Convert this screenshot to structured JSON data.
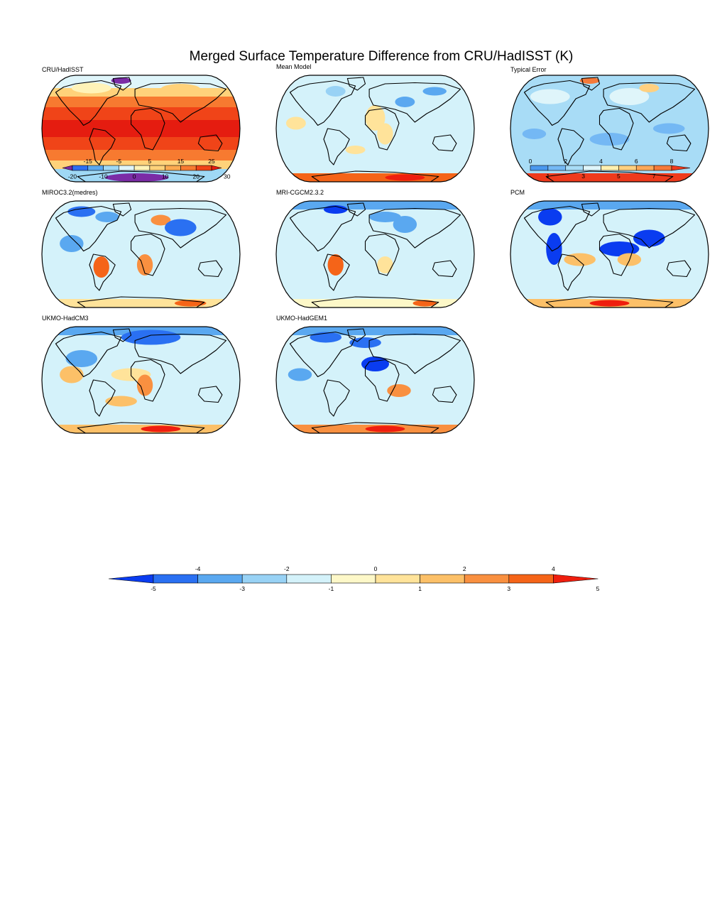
{
  "title": "Merged Surface Temperature Difference from CRU/HadISST (K)",
  "panels": [
    {
      "label": "CRU/HadISST",
      "kind": "absolute"
    },
    {
      "label": "Mean Model",
      "kind": "difference"
    },
    {
      "label": "Typical Error",
      "kind": "error"
    },
    {
      "label": "MIROC3.2(medres)",
      "kind": "difference"
    },
    {
      "label": "MRI-CGCM2.3.2",
      "kind": "difference"
    },
    {
      "label": "PCM",
      "kind": "difference"
    },
    {
      "label": "UKMO-HadCM3",
      "kind": "difference"
    },
    {
      "label": "UKMO-HadGEM1",
      "kind": "difference"
    }
  ],
  "legends": {
    "absolute": {
      "top_ticks": [
        "-15",
        "-5",
        "5",
        "15",
        "25"
      ],
      "bottom_ticks": [
        "-20",
        "-10",
        "0",
        "10",
        "20",
        "30"
      ],
      "colors": [
        "#7b2ca6",
        "#2d6ff2",
        "#5aa8f0",
        "#9fd8f5",
        "#dff5fa",
        "#fff3b8",
        "#ffd27a",
        "#fcaa50",
        "#f77a30",
        "#f04418",
        "#e51c10"
      ]
    },
    "error": {
      "top_ticks": [
        "0",
        "2",
        "4",
        "6",
        "8"
      ],
      "bottom_ticks": [
        "1",
        "3",
        "5",
        "7"
      ],
      "colors": [
        "#4a98ee",
        "#74b8f4",
        "#a8dcf6",
        "#dff5fa",
        "#fff0b0",
        "#ffd080",
        "#fba858",
        "#f57a3a",
        "#ef3a1c"
      ]
    },
    "difference": {
      "top_ticks": [
        "-4",
        "-2",
        "0",
        "2",
        "4"
      ],
      "bottom_ticks": [
        "-5",
        "-3",
        "-1",
        "1",
        "3",
        "5"
      ],
      "colors": [
        "#0a3cf0",
        "#2a70f2",
        "#5aa8f0",
        "#98d2f5",
        "#d4f2fa",
        "#fdf8c8",
        "#ffe39a",
        "#fcc068",
        "#f99040",
        "#f56418",
        "#ef1e0e"
      ]
    }
  }
}
